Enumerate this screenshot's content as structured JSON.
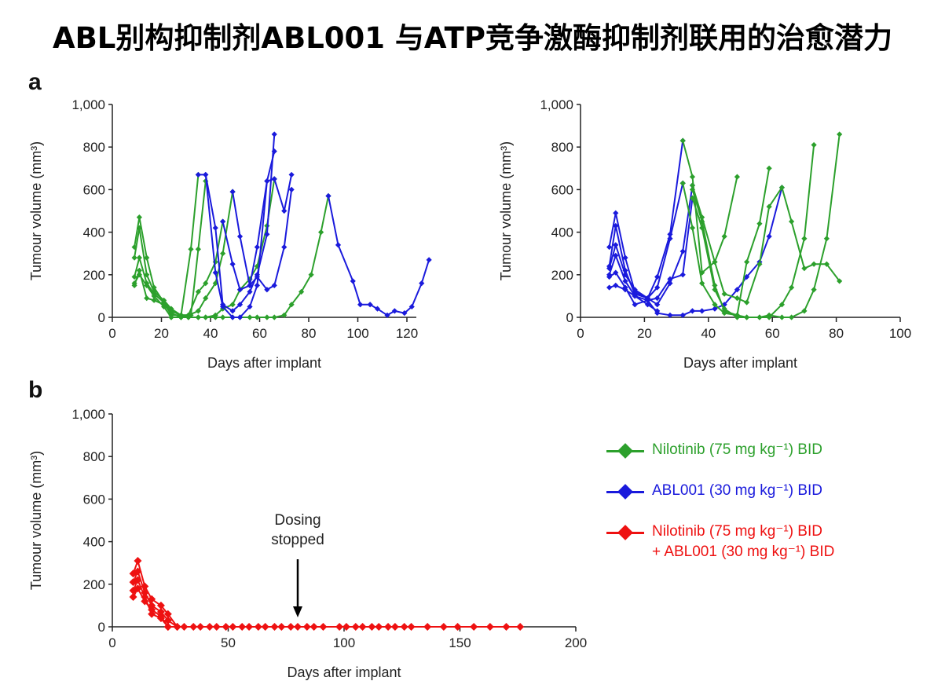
{
  "title": "ABL别构抑制剂ABL001 与ATP竞争激酶抑制剂联用的治愈潜力",
  "panels": {
    "a": "a",
    "b": "b"
  },
  "colors": {
    "nilotinib": "#2ca02c",
    "abl001": "#1a1adc",
    "combo": "#ee1111"
  },
  "legend": [
    {
      "key": "nilotinib",
      "label": "Nilotinib (75 mg kg⁻¹) BID",
      "color": "#2ca02c"
    },
    {
      "key": "abl001",
      "label": "ABL001 (30 mg kg⁻¹) BID",
      "color": "#1a1adc"
    },
    {
      "key": "combo",
      "label": "Nilotinib (75 mg kg⁻¹) BID",
      "label2": "+ ABL001 (30 mg kg⁻¹) BID",
      "color": "#ee1111"
    }
  ],
  "annotation": {
    "line1": "Dosing",
    "line2": "stopped",
    "x": 80
  },
  "chart_data": [
    {
      "id": "a-left",
      "type": "line",
      "xlabel": "Days after implant",
      "ylabel": "Tumour volume (mm³)",
      "xlim": [
        0,
        130
      ],
      "ylim": [
        0,
        1000
      ],
      "xticks": [
        0,
        20,
        40,
        60,
        80,
        100,
        120
      ],
      "yticks": [
        0,
        200,
        400,
        600,
        800,
        1000
      ],
      "ytick_labels": [
        "0",
        "200",
        "400",
        "600",
        "800",
        "1,000"
      ],
      "series": [
        {
          "name": "Nilotinib",
          "color": "#2ca02c",
          "x": [
            9,
            11,
            14,
            17,
            21,
            24,
            28,
            32,
            35
          ],
          "y": [
            330,
            470,
            280,
            140,
            70,
            10,
            10,
            320,
            670
          ]
        },
        {
          "name": "Nilotinib",
          "color": "#2ca02c",
          "x": [
            9,
            11,
            14,
            17,
            21,
            24,
            28,
            32,
            35,
            38
          ],
          "y": [
            280,
            420,
            200,
            120,
            80,
            40,
            10,
            10,
            320,
            640
          ]
        },
        {
          "name": "Nilotinib",
          "color": "#2ca02c",
          "x": [
            9,
            11,
            14,
            17,
            21,
            24,
            28,
            31,
            35,
            38,
            42,
            45
          ],
          "y": [
            190,
            280,
            160,
            110,
            70,
            30,
            10,
            10,
            120,
            160,
            260,
            450
          ]
        },
        {
          "name": "Nilotinib",
          "color": "#2ca02c",
          "x": [
            9,
            11,
            14,
            17,
            21,
            24,
            28,
            31,
            35,
            38,
            42,
            45,
            49
          ],
          "y": [
            150,
            220,
            90,
            80,
            60,
            20,
            0,
            10,
            30,
            90,
            160,
            300,
            590
          ]
        },
        {
          "name": "Nilotinib",
          "color": "#2ca02c",
          "x": [
            9,
            11,
            14,
            17,
            21,
            24,
            28,
            31,
            35,
            38,
            42,
            45,
            49,
            52,
            56,
            59,
            63,
            66
          ],
          "y": [
            160,
            200,
            150,
            100,
            50,
            0,
            0,
            0,
            0,
            0,
            10,
            40,
            60,
            130,
            180,
            240,
            430,
            650
          ]
        },
        {
          "name": "Nilotinib",
          "color": "#2ca02c",
          "x": [
            24,
            28,
            31,
            35,
            38,
            42,
            45,
            49,
            52,
            56,
            59,
            63,
            66,
            70,
            73,
            77,
            81,
            85,
            88
          ],
          "y": [
            0,
            0,
            0,
            0,
            0,
            0,
            0,
            0,
            0,
            0,
            0,
            0,
            0,
            10,
            60,
            120,
            200,
            400,
            570
          ]
        },
        {
          "name": "ABL001",
          "color": "#1a1adc",
          "x": [
            38,
            42,
            45,
            49,
            52,
            56,
            59,
            63,
            66
          ],
          "y": [
            670,
            420,
            60,
            30,
            60,
            120,
            200,
            390,
            860
          ]
        },
        {
          "name": "ABL001",
          "color": "#1a1adc",
          "x": [
            35,
            38,
            42,
            45,
            49,
            52,
            56,
            59,
            63,
            66
          ],
          "y": [
            670,
            670,
            210,
            50,
            0,
            0,
            50,
            150,
            640,
            780
          ]
        },
        {
          "name": "ABL001",
          "color": "#1a1adc",
          "x": [
            49,
            52,
            56,
            59,
            63,
            66,
            70,
            73
          ],
          "y": [
            590,
            380,
            150,
            190,
            130,
            150,
            330,
            600
          ]
        },
        {
          "name": "ABL001",
          "color": "#1a1adc",
          "x": [
            45,
            49,
            52,
            56,
            59,
            63,
            66,
            70,
            73
          ],
          "y": [
            450,
            250,
            130,
            150,
            330,
            640,
            650,
            500,
            670
          ]
        },
        {
          "name": "ABL001",
          "color": "#1a1adc",
          "x": [
            88,
            92,
            98,
            101,
            105,
            108,
            112,
            115,
            119,
            122,
            126,
            129
          ],
          "y": [
            570,
            340,
            170,
            60,
            60,
            40,
            10,
            30,
            20,
            50,
            160,
            270
          ]
        }
      ]
    },
    {
      "id": "a-right",
      "type": "line",
      "xlabel": "Days after implant",
      "ylabel": "Tumour volume (mm³)",
      "xlim": [
        0,
        100
      ],
      "ylim": [
        0,
        1000
      ],
      "xticks": [
        0,
        20,
        40,
        60,
        80,
        100
      ],
      "yticks": [
        0,
        200,
        400,
        600,
        800,
        1000
      ],
      "ytick_labels": [
        "0",
        "200",
        "400",
        "600",
        "800",
        "1,000"
      ],
      "series": [
        {
          "name": "ABL001",
          "color": "#1a1adc",
          "x": [
            9,
            11,
            14,
            17,
            21,
            24,
            28,
            32
          ],
          "y": [
            330,
            490,
            280,
            120,
            90,
            190,
            390,
            830
          ]
        },
        {
          "name": "ABL001",
          "color": "#1a1adc",
          "x": [
            9,
            11,
            14,
            17,
            21,
            24,
            28,
            32
          ],
          "y": [
            240,
            430,
            220,
            110,
            90,
            140,
            370,
            630
          ]
        },
        {
          "name": "ABL001",
          "color": "#1a1adc",
          "x": [
            9,
            11,
            14,
            17,
            21,
            24,
            28,
            32,
            35
          ],
          "y": [
            230,
            340,
            200,
            130,
            90,
            60,
            160,
            310,
            620
          ]
        },
        {
          "name": "ABL001",
          "color": "#1a1adc",
          "x": [
            9,
            11,
            14,
            17,
            21,
            24,
            28,
            32,
            35
          ],
          "y": [
            200,
            290,
            170,
            100,
            80,
            90,
            180,
            200,
            560
          ]
        },
        {
          "name": "ABL001",
          "color": "#1a1adc",
          "x": [
            9,
            11,
            14,
            17,
            21,
            24,
            28,
            32,
            35,
            38,
            42,
            45,
            49,
            52,
            56,
            59,
            63
          ],
          "y": [
            190,
            210,
            140,
            60,
            80,
            20,
            10,
            10,
            30,
            30,
            40,
            60,
            130,
            190,
            260,
            380,
            610
          ]
        },
        {
          "name": "ABL001",
          "color": "#1a1adc",
          "x": [
            9,
            11,
            14,
            17,
            21,
            24
          ],
          "y": [
            140,
            150,
            130,
            100,
            60,
            30
          ]
        },
        {
          "name": "Nilotinib",
          "color": "#2ca02c",
          "x": [
            32,
            35,
            38,
            42,
            45,
            49
          ],
          "y": [
            830,
            660,
            210,
            260,
            380,
            660
          ]
        },
        {
          "name": "Nilotinib",
          "color": "#2ca02c",
          "x": [
            32,
            35,
            38,
            42,
            45,
            49,
            52,
            56,
            59
          ],
          "y": [
            630,
            420,
            160,
            60,
            20,
            10,
            260,
            440,
            700
          ]
        },
        {
          "name": "Nilotinib",
          "color": "#2ca02c",
          "x": [
            35,
            38,
            42,
            45,
            49,
            52,
            56,
            59,
            63,
            66,
            70,
            73,
            77,
            81
          ],
          "y": [
            620,
            470,
            260,
            110,
            90,
            70,
            250,
            520,
            610,
            450,
            230,
            250,
            250,
            170
          ]
        },
        {
          "name": "Nilotinib",
          "color": "#2ca02c",
          "x": [
            35,
            38,
            42,
            45,
            49,
            52,
            56,
            59,
            63,
            66,
            70,
            73
          ],
          "y": [
            560,
            420,
            130,
            40,
            0,
            0,
            0,
            0,
            60,
            140,
            370,
            810
          ]
        },
        {
          "name": "Nilotinib",
          "color": "#2ca02c",
          "x": [
            35,
            38,
            42,
            45,
            49,
            52,
            56,
            59,
            63,
            66,
            70,
            73,
            77,
            81
          ],
          "y": [
            600,
            450,
            150,
            30,
            10,
            0,
            0,
            10,
            0,
            0,
            30,
            130,
            370,
            860
          ]
        }
      ]
    },
    {
      "id": "b",
      "type": "line",
      "xlabel": "Days after implant",
      "ylabel": "Tumour volume (mm³)",
      "xlim": [
        0,
        200
      ],
      "ylim": [
        0,
        1000
      ],
      "xticks": [
        0,
        50,
        100,
        150,
        200
      ],
      "yticks": [
        0,
        200,
        400,
        600,
        800,
        1000
      ],
      "ytick_labels": [
        "0",
        "200",
        "400",
        "600",
        "800",
        "1,000"
      ],
      "series": [
        {
          "name": "Nilotinib + ABL001",
          "color": "#ee1111",
          "x": [
            9,
            11,
            14,
            17,
            21,
            24,
            28
          ],
          "y": [
            250,
            310,
            190,
            130,
            100,
            60,
            0
          ]
        },
        {
          "name": "Nilotinib + ABL001",
          "color": "#ee1111",
          "x": [
            9,
            11,
            14,
            17,
            21,
            24,
            28
          ],
          "y": [
            210,
            260,
            160,
            100,
            70,
            30,
            0
          ]
        },
        {
          "name": "Nilotinib + ABL001",
          "color": "#ee1111",
          "x": [
            9,
            11,
            14,
            17,
            21,
            24
          ],
          "y": [
            140,
            180,
            120,
            80,
            50,
            0
          ]
        },
        {
          "name": "Nilotinib + ABL001",
          "color": "#ee1111",
          "x": [
            9,
            11,
            14,
            17,
            21,
            24
          ],
          "y": [
            170,
            220,
            140,
            60,
            40,
            0
          ]
        },
        {
          "name": "Nilotinib + ABL001",
          "color": "#ee1111",
          "x": [
            24,
            28,
            31,
            35,
            38,
            42,
            45,
            49,
            52,
            56,
            59,
            63,
            66,
            70,
            73,
            77,
            80,
            84,
            87,
            91,
            98,
            101,
            105,
            108,
            112,
            115,
            119,
            122,
            126,
            129,
            136,
            143,
            149,
            156,
            163,
            170,
            176
          ],
          "y": [
            0,
            0,
            0,
            0,
            0,
            0,
            0,
            0,
            0,
            0,
            0,
            0,
            0,
            0,
            0,
            0,
            0,
            0,
            0,
            0,
            0,
            0,
            0,
            0,
            0,
            0,
            0,
            0,
            0,
            0,
            0,
            0,
            0,
            0,
            0,
            0,
            0
          ]
        }
      ]
    }
  ]
}
